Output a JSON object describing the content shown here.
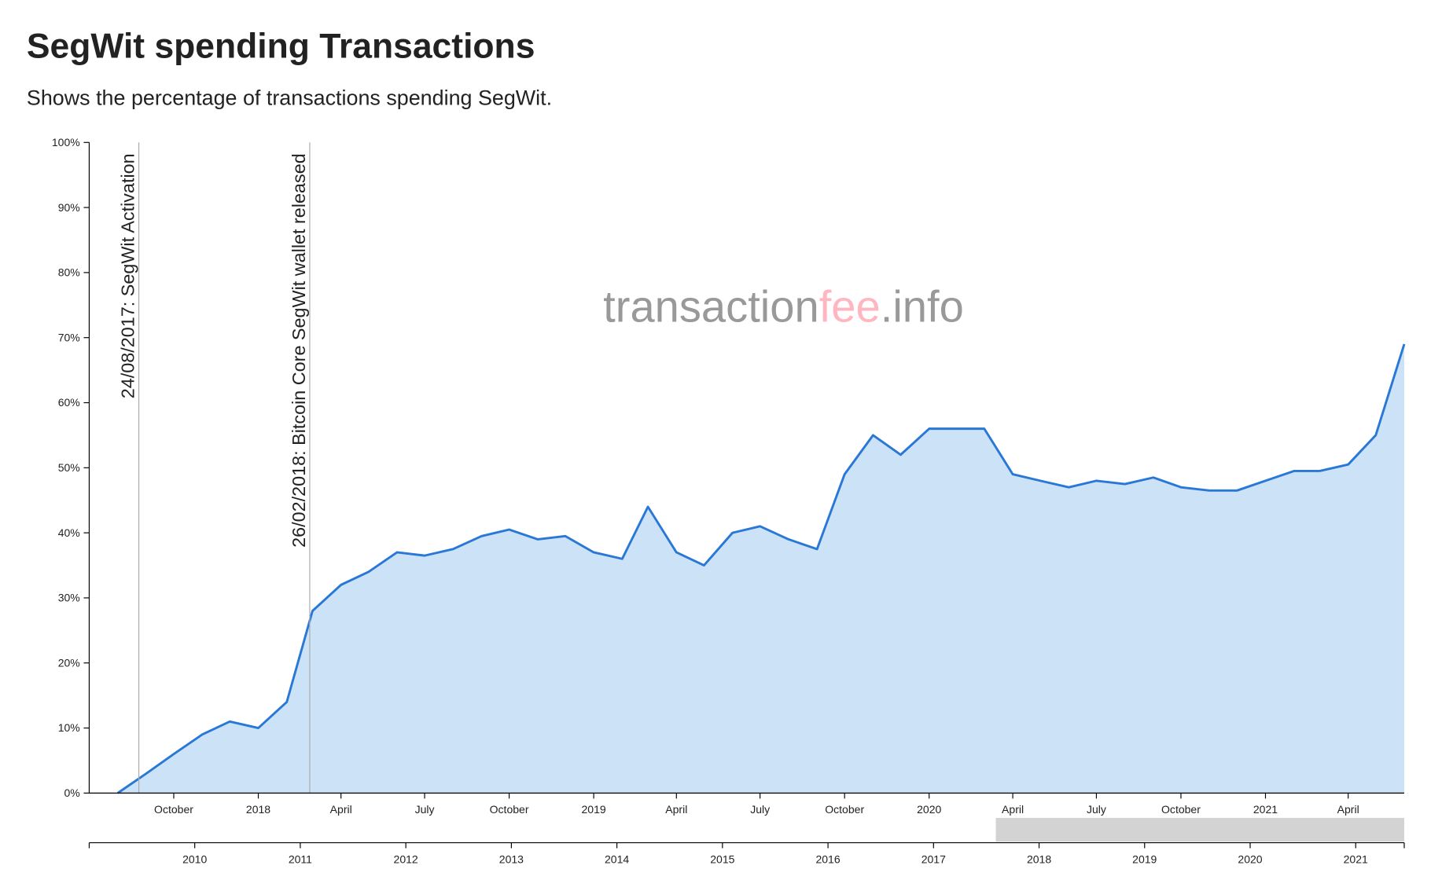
{
  "chart_data": {
    "type": "area",
    "title": "SegWit spending Transactions",
    "subtitle": "Shows the percentage of transactions spending SegWit.",
    "watermark": [
      "transaction",
      "fee",
      ".info"
    ],
    "watermark_colors": [
      "#999999",
      "#ffb6c1",
      "#999999"
    ],
    "color": "#2a78d6",
    "fill": "#cce2f7",
    "x": [
      "2017-08",
      "2017-09",
      "2017-10",
      "2017-11",
      "2017-12",
      "2018-01",
      "2018-02",
      "2018-03",
      "2018-04",
      "2018-05",
      "2018-06",
      "2018-07",
      "2018-08",
      "2018-09",
      "2018-10",
      "2018-11",
      "2018-12",
      "2019-01",
      "2019-02",
      "2019-03",
      "2019-04",
      "2019-05",
      "2019-06",
      "2019-07",
      "2019-08",
      "2019-09",
      "2019-10",
      "2019-11",
      "2019-12",
      "2020-01",
      "2020-02",
      "2020-03",
      "2020-04",
      "2020-05",
      "2020-06",
      "2020-07",
      "2020-08",
      "2020-09",
      "2020-10",
      "2020-11",
      "2020-12",
      "2021-01",
      "2021-02",
      "2021-03",
      "2021-04",
      "2021-05",
      "2021-06"
    ],
    "values": [
      0,
      3,
      6,
      9,
      11,
      10,
      14,
      28,
      32,
      34,
      37,
      36.5,
      37.5,
      39.5,
      40.5,
      39,
      39.5,
      37,
      36,
      44,
      37,
      35,
      40,
      41,
      39,
      37.5,
      49,
      55,
      52,
      56,
      56,
      56,
      49,
      48,
      47,
      48,
      47.5,
      48.5,
      47,
      46.5,
      46.5,
      48,
      49.5,
      49.5,
      50.5,
      55,
      69
    ],
    "xlim": [
      "2017-07",
      "2021-06"
    ],
    "xticks": [
      {
        "value": "2017-10",
        "label": "October"
      },
      {
        "value": "2018-01",
        "label": "2018"
      },
      {
        "value": "2018-04",
        "label": "April"
      },
      {
        "value": "2018-07",
        "label": "July"
      },
      {
        "value": "2018-10",
        "label": "October"
      },
      {
        "value": "2019-01",
        "label": "2019"
      },
      {
        "value": "2019-04",
        "label": "April"
      },
      {
        "value": "2019-07",
        "label": "July"
      },
      {
        "value": "2019-10",
        "label": "October"
      },
      {
        "value": "2020-01",
        "label": "2020"
      },
      {
        "value": "2020-04",
        "label": "April"
      },
      {
        "value": "2020-07",
        "label": "July"
      },
      {
        "value": "2020-10",
        "label": "October"
      },
      {
        "value": "2021-01",
        "label": "2021"
      },
      {
        "value": "2021-04",
        "label": "April"
      }
    ],
    "ylim": [
      0,
      100
    ],
    "yticks": [
      {
        "value": 0,
        "label": "0%"
      },
      {
        "value": 10,
        "label": "10%"
      },
      {
        "value": 20,
        "label": "20%"
      },
      {
        "value": 30,
        "label": "30%"
      },
      {
        "value": 40,
        "label": "40%"
      },
      {
        "value": 50,
        "label": "50%"
      },
      {
        "value": 60,
        "label": "60%"
      },
      {
        "value": 70,
        "label": "70%"
      },
      {
        "value": 80,
        "label": "80%"
      },
      {
        "value": 90,
        "label": "90%"
      },
      {
        "value": 100,
        "label": "100%"
      }
    ],
    "annotations": [
      {
        "x": "2017-08-24",
        "label": "24/08/2017: SegWit Activation"
      },
      {
        "x": "2018-02-26",
        "label": "26/02/2018: Bitcoin Core SegWit wallet released"
      }
    ],
    "overview_xlim": [
      2009,
      2021.46
    ],
    "overview_xticks": [
      2010,
      2011,
      2012,
      2013,
      2014,
      2015,
      2016,
      2017,
      2018,
      2019,
      2020,
      2021
    ],
    "overview_selection": [
      2017.59,
      2021.46
    ]
  }
}
